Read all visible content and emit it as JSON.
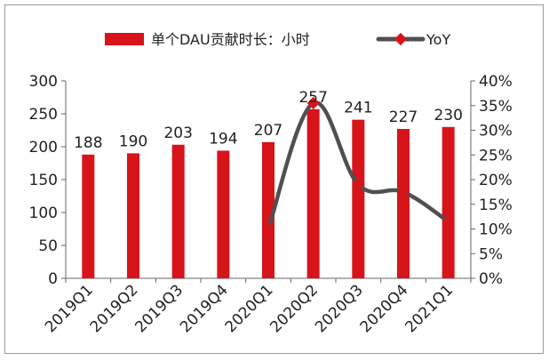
{
  "chart_data": {
    "type": "bar",
    "categories": [
      "2019Q1",
      "2019Q2",
      "2019Q3",
      "2019Q4",
      "2020Q1",
      "2020Q2",
      "2020Q3",
      "2020Q4",
      "2021Q1"
    ],
    "series": [
      {
        "name": "单个DAU贡献时长：小时",
        "type": "bar",
        "axis": "left",
        "values": [
          188,
          190,
          203,
          194,
          207,
          257,
          241,
          227,
          230
        ],
        "color": "#d7141a"
      },
      {
        "name": "YoY",
        "type": "line",
        "axis": "right",
        "values": [
          null,
          null,
          null,
          null,
          0.1,
          0.355,
          0.19,
          0.175,
          0.115
        ],
        "color": "#505050",
        "marker_color": "#d7141a"
      }
    ],
    "ylim_left": [
      0,
      300
    ],
    "yticks_left": [
      "0",
      "50",
      "100",
      "150",
      "200",
      "250",
      "300"
    ],
    "ylim_right": [
      0,
      0.4
    ],
    "yticks_right": [
      "0%",
      "5%",
      "10%",
      "15%",
      "20%",
      "25%",
      "30%",
      "35%",
      "40%"
    ],
    "legend_position": "top",
    "grid": false
  }
}
